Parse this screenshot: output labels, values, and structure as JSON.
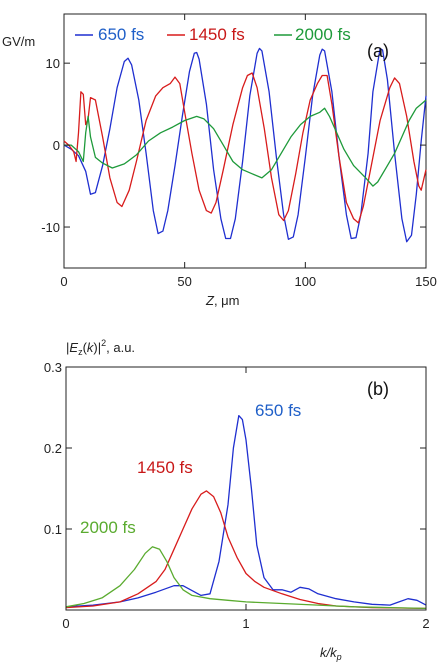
{
  "chart_data": [
    {
      "type": "line",
      "panel_label": "(a)",
      "ylabel_top": "GV/m",
      "xlabel_var": "Z",
      "xlabel_unit": ", μm",
      "xlim": [
        0,
        150
      ],
      "ylim": [
        -15,
        16
      ],
      "xticks": [
        0,
        50,
        100,
        150
      ],
      "yticks": [
        10,
        0,
        -10
      ],
      "grid": false,
      "legend_position": "top",
      "series": [
        {
          "name": "650 fs",
          "color": "#1f2fd0",
          "points": [
            [
              0,
              0
            ],
            [
              3,
              -0.5
            ],
            [
              6,
              -1.3
            ],
            [
              9,
              -3.2
            ],
            [
              11,
              -6.0
            ],
            [
              13,
              -5.8
            ],
            [
              16,
              -2.5
            ],
            [
              19,
              2.0
            ],
            [
              22,
              7.0
            ],
            [
              25,
              10.2
            ],
            [
              26.5,
              10.6
            ],
            [
              28,
              9.8
            ],
            [
              31,
              5.5
            ],
            [
              34,
              -1.0
            ],
            [
              37,
              -8.0
            ],
            [
              39,
              -10.8
            ],
            [
              41,
              -10.5
            ],
            [
              43,
              -8.0
            ],
            [
              46,
              -2.5
            ],
            [
              49,
              3.5
            ],
            [
              52,
              9.0
            ],
            [
              54,
              11.2
            ],
            [
              55,
              11.3
            ],
            [
              56,
              10.5
            ],
            [
              59,
              5.0
            ],
            [
              62,
              -3.0
            ],
            [
              65,
              -9.0
            ],
            [
              67,
              -11.4
            ],
            [
              69,
              -11.4
            ],
            [
              71,
              -9.0
            ],
            [
              74,
              -2.0
            ],
            [
              77,
              6.0
            ],
            [
              80,
              11.2
            ],
            [
              81,
              11.8
            ],
            [
              82,
              11.5
            ],
            [
              85,
              6.5
            ],
            [
              88,
              -1.5
            ],
            [
              91,
              -8.5
            ],
            [
              93,
              -11.5
            ],
            [
              95,
              -11.2
            ],
            [
              97,
              -8.5
            ],
            [
              100,
              -1.5
            ],
            [
              103,
              6.0
            ],
            [
              106,
              11.0
            ],
            [
              107,
              11.7
            ],
            [
              108,
              11.5
            ],
            [
              111,
              6.5
            ],
            [
              114,
              -1.5
            ],
            [
              117,
              -8.5
            ],
            [
              119,
              -11.4
            ],
            [
              121,
              -11.3
            ],
            [
              123,
              -8.5
            ],
            [
              126,
              -1.0
            ],
            [
              128,
              6.5
            ],
            [
              131,
              11.8
            ],
            [
              132,
              11.6
            ],
            [
              134,
              8.0
            ],
            [
              137,
              -1.0
            ],
            [
              140,
              -9.0
            ],
            [
              142,
              -11.8
            ],
            [
              144,
              -11.0
            ],
            [
              146,
              -6.0
            ],
            [
              148,
              0.5
            ],
            [
              150,
              6.0
            ]
          ]
        },
        {
          "name": "1450 fs",
          "color": "#d81c1c",
          "points": [
            [
              0,
              0.5
            ],
            [
              2,
              0
            ],
            [
              4,
              -0.8
            ],
            [
              5,
              -2.0
            ],
            [
              6,
              1.5
            ],
            [
              7,
              6.5
            ],
            [
              8,
              6.2
            ],
            [
              9,
              2.5
            ],
            [
              10,
              3.2
            ],
            [
              11,
              5.8
            ],
            [
              13,
              5.5
            ],
            [
              16,
              1.0
            ],
            [
              19,
              -4.0
            ],
            [
              22,
              -7.0
            ],
            [
              24,
              -7.5
            ],
            [
              27,
              -5.5
            ],
            [
              30,
              -2.0
            ],
            [
              34,
              3.0
            ],
            [
              38,
              6.0
            ],
            [
              41,
              7.0
            ],
            [
              44,
              7.5
            ],
            [
              46,
              8.3
            ],
            [
              48,
              7.5
            ],
            [
              50,
              4.0
            ],
            [
              53,
              -1.0
            ],
            [
              56,
              -5.5
            ],
            [
              59,
              -8.0
            ],
            [
              61,
              -8.3
            ],
            [
              63,
              -7.0
            ],
            [
              66,
              -3.0
            ],
            [
              70,
              2.5
            ],
            [
              74,
              7.0
            ],
            [
              76,
              8.5
            ],
            [
              78,
              8.8
            ],
            [
              80,
              7.0
            ],
            [
              83,
              2.0
            ],
            [
              86,
              -4.0
            ],
            [
              89,
              -8.5
            ],
            [
              91,
              -9.2
            ],
            [
              93,
              -8.0
            ],
            [
              96,
              -3.5
            ],
            [
              99,
              1.5
            ],
            [
              102,
              5.5
            ],
            [
              105,
              7.5
            ],
            [
              107,
              8.5
            ],
            [
              109,
              8.5
            ],
            [
              111,
              5.0
            ],
            [
              114,
              -1.5
            ],
            [
              117,
              -7.0
            ],
            [
              120,
              -9.0
            ],
            [
              122,
              -9.5
            ],
            [
              124,
              -7.5
            ],
            [
              127,
              -3.0
            ],
            [
              131,
              3.0
            ],
            [
              135,
              7.0
            ],
            [
              137,
              8.2
            ],
            [
              139,
              7.5
            ],
            [
              142,
              3.5
            ],
            [
              145,
              -2.0
            ],
            [
              147,
              -5.0
            ],
            [
              148,
              -5.5
            ],
            [
              150,
              -3.0
            ]
          ]
        },
        {
          "name": "2000 fs",
          "color": "#1e9a3a",
          "points": [
            [
              0,
              0
            ],
            [
              3,
              0
            ],
            [
              6,
              -0.8
            ],
            [
              8,
              -2.0
            ],
            [
              9,
              1.5
            ],
            [
              10,
              3.5
            ],
            [
              11,
              1.0
            ],
            [
              13,
              -1.5
            ],
            [
              16,
              -2.2
            ],
            [
              20,
              -2.8
            ],
            [
              25,
              -2.3
            ],
            [
              30,
              -1.2
            ],
            [
              35,
              0.5
            ],
            [
              40,
              1.5
            ],
            [
              45,
              2.2
            ],
            [
              50,
              3.0
            ],
            [
              55,
              3.5
            ],
            [
              58,
              3.2
            ],
            [
              62,
              2.0
            ],
            [
              66,
              0
            ],
            [
              70,
              -2.0
            ],
            [
              74,
              -3.0
            ],
            [
              78,
              -3.5
            ],
            [
              82,
              -4.0
            ],
            [
              86,
              -3.0
            ],
            [
              90,
              -1.0
            ],
            [
              94,
              1.0
            ],
            [
              98,
              2.5
            ],
            [
              102,
              3.5
            ],
            [
              106,
              4.0
            ],
            [
              108,
              4.5
            ],
            [
              110,
              3.5
            ],
            [
              113,
              1.5
            ],
            [
              116,
              -0.5
            ],
            [
              120,
              -2.5
            ],
            [
              125,
              -4.0
            ],
            [
              128,
              -5.0
            ],
            [
              130,
              -4.5
            ],
            [
              133,
              -3.0
            ],
            [
              137,
              -1.0
            ],
            [
              140,
              1.0
            ],
            [
              143,
              3.0
            ],
            [
              146,
              4.5
            ],
            [
              148,
              5.0
            ],
            [
              150,
              5.5
            ]
          ]
        }
      ]
    },
    {
      "type": "line",
      "panel_label": "(b)",
      "ylabel_top": "|E_z(k)|², a.u.",
      "xlabel_var": "k/k_p",
      "xlim": [
        0,
        2
      ],
      "ylim": [
        0,
        0.3
      ],
      "xticks": [
        0,
        1,
        2
      ],
      "yticks": [
        0.3,
        0.2,
        0.1
      ],
      "grid": false,
      "series": [
        {
          "name": "650 fs",
          "color": "#1f2fd0",
          "points": [
            [
              0,
              0.004
            ],
            [
              0.15,
              0.006
            ],
            [
              0.3,
              0.01
            ],
            [
              0.4,
              0.015
            ],
            [
              0.5,
              0.022
            ],
            [
              0.6,
              0.03
            ],
            [
              0.65,
              0.03
            ],
            [
              0.7,
              0.024
            ],
            [
              0.75,
              0.018
            ],
            [
              0.8,
              0.02
            ],
            [
              0.85,
              0.06
            ],
            [
              0.9,
              0.13
            ],
            [
              0.93,
              0.2
            ],
            [
              0.96,
              0.24
            ],
            [
              0.98,
              0.235
            ],
            [
              1.0,
              0.21
            ],
            [
              1.03,
              0.15
            ],
            [
              1.06,
              0.08
            ],
            [
              1.1,
              0.04
            ],
            [
              1.15,
              0.025
            ],
            [
              1.2,
              0.025
            ],
            [
              1.25,
              0.022
            ],
            [
              1.3,
              0.028
            ],
            [
              1.35,
              0.026
            ],
            [
              1.4,
              0.02
            ],
            [
              1.5,
              0.014
            ],
            [
              1.6,
              0.01
            ],
            [
              1.7,
              0.007
            ],
            [
              1.8,
              0.006
            ],
            [
              1.85,
              0.01
            ],
            [
              1.9,
              0.014
            ],
            [
              1.95,
              0.012
            ],
            [
              2.0,
              0.006
            ]
          ]
        },
        {
          "name": "1450 fs",
          "color": "#d81c1c",
          "points": [
            [
              0,
              0.003
            ],
            [
              0.15,
              0.005
            ],
            [
              0.3,
              0.01
            ],
            [
              0.4,
              0.02
            ],
            [
              0.5,
              0.035
            ],
            [
              0.55,
              0.05
            ],
            [
              0.6,
              0.075
            ],
            [
              0.65,
              0.1
            ],
            [
              0.7,
              0.125
            ],
            [
              0.75,
              0.143
            ],
            [
              0.78,
              0.147
            ],
            [
              0.82,
              0.14
            ],
            [
              0.86,
              0.12
            ],
            [
              0.9,
              0.09
            ],
            [
              0.95,
              0.065
            ],
            [
              1.0,
              0.045
            ],
            [
              1.05,
              0.035
            ],
            [
              1.1,
              0.028
            ],
            [
              1.2,
              0.02
            ],
            [
              1.3,
              0.013
            ],
            [
              1.4,
              0.008
            ],
            [
              1.5,
              0.005
            ],
            [
              1.7,
              0.003
            ],
            [
              2.0,
              0.002
            ]
          ]
        },
        {
          "name": "2000 fs",
          "color": "#5aab2f",
          "points": [
            [
              0,
              0.004
            ],
            [
              0.1,
              0.008
            ],
            [
              0.2,
              0.015
            ],
            [
              0.3,
              0.03
            ],
            [
              0.38,
              0.05
            ],
            [
              0.44,
              0.07
            ],
            [
              0.48,
              0.078
            ],
            [
              0.52,
              0.075
            ],
            [
              0.56,
              0.06
            ],
            [
              0.6,
              0.04
            ],
            [
              0.65,
              0.025
            ],
            [
              0.7,
              0.018
            ],
            [
              0.8,
              0.014
            ],
            [
              0.9,
              0.012
            ],
            [
              1.0,
              0.01
            ],
            [
              1.2,
              0.008
            ],
            [
              1.4,
              0.006
            ],
            [
              1.6,
              0.004
            ],
            [
              1.8,
              0.003
            ],
            [
              2.0,
              0.002
            ]
          ]
        }
      ]
    }
  ]
}
